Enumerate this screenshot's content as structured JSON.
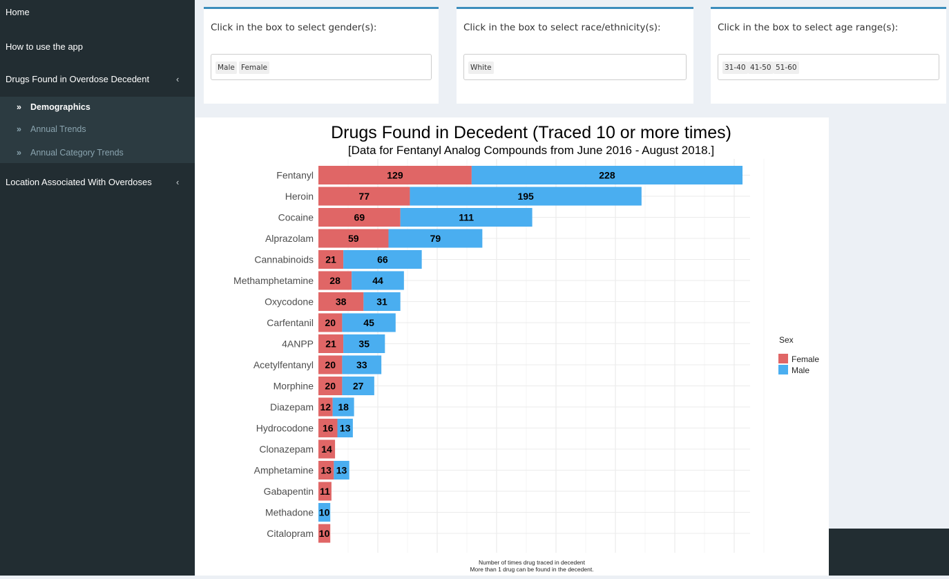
{
  "sidebar": {
    "items": [
      {
        "label": "Home"
      },
      {
        "label": "How to use the app"
      },
      {
        "label": "Drugs Found in Overdose Decedent",
        "chevron": "‹"
      },
      {
        "label": "Location Associated With Overdoses",
        "chevron": "‹"
      }
    ],
    "subitems": [
      {
        "label": "Demographics",
        "arrow": "»",
        "active": true
      },
      {
        "label": "Annual Trends",
        "arrow": "»",
        "active": false
      },
      {
        "label": "Annual Category Trends",
        "arrow": "»",
        "active": false
      }
    ]
  },
  "filters": {
    "gender": {
      "title": "Click in the box to select gender(s):",
      "chips": [
        "Male",
        "Female"
      ]
    },
    "race": {
      "title": "Click in the box to select race/ethnicity(s):",
      "chips": [
        "White"
      ]
    },
    "age": {
      "title": "Click in the box to select age range(s):",
      "chips": [
        "31-40",
        "41-50",
        "51-60"
      ]
    }
  },
  "colors": {
    "sidebar_bg": "#222d32",
    "submenu_bg": "#2c3b41",
    "accent": "#3c8dbc",
    "female": "#e06666",
    "male": "#4aaef0"
  },
  "chart_data": {
    "type": "bar",
    "orientation": "horizontal",
    "stacked": true,
    "title": "Drugs Found in Decedent (Traced 10 or more times)",
    "subtitle": "[Data for Fentanyl Analog Compounds from June 2016 - August 2018.]",
    "xlabel": "Number of times drug traced in decedent",
    "xlabel_note": "More than 1 drug can be found in the decedent.",
    "xlim": [
      0,
      380
    ],
    "grid": true,
    "categories": [
      "Fentanyl",
      "Heroin",
      "Cocaine",
      "Alprazolam",
      "Cannabinoids",
      "Methamphetamine",
      "Oxycodone",
      "Carfentanil",
      "4ANPP",
      "Acetylfentanyl",
      "Morphine",
      "Diazepam",
      "Hydrocodone",
      "Clonazepam",
      "Amphetamine",
      "Gabapentin",
      "Methadone",
      "Citalopram"
    ],
    "series": [
      {
        "name": "Female",
        "color": "#e06666",
        "values": [
          129,
          77,
          69,
          59,
          21,
          28,
          38,
          20,
          21,
          20,
          20,
          12,
          16,
          14,
          13,
          11,
          0,
          10
        ]
      },
      {
        "name": "Male",
        "color": "#4aaef0",
        "values": [
          228,
          195,
          111,
          79,
          66,
          44,
          31,
          45,
          35,
          33,
          27,
          18,
          13,
          0,
          13,
          0,
          10,
          0
        ]
      }
    ],
    "legend": {
      "title": "Sex",
      "position": "right"
    }
  }
}
